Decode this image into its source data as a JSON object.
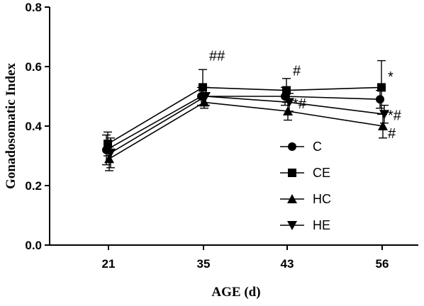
{
  "chart_data": {
    "type": "line",
    "xlabel": "AGE (d)",
    "ylabel": "Gonadosomatic Index",
    "categories": [
      "21",
      "35",
      "43",
      "56"
    ],
    "ylim": [
      0,
      0.8
    ],
    "yticks": [
      "0.0",
      "0.2",
      "0.4",
      "0.6",
      "0.8"
    ],
    "grid": false,
    "legend_position": "center-right",
    "series": [
      {
        "name": "C",
        "marker": "circle",
        "values": [
          0.32,
          0.5,
          0.5,
          0.49
        ],
        "errors": [
          0.05,
          0.03,
          0.03,
          0.03
        ]
      },
      {
        "name": "CE",
        "marker": "square",
        "values": [
          0.34,
          0.53,
          0.52,
          0.53
        ],
        "errors": [
          0.04,
          0.06,
          0.04,
          0.09
        ]
      },
      {
        "name": "HC",
        "marker": "triangle-up",
        "values": [
          0.29,
          0.48,
          0.45,
          0.4
        ],
        "errors": [
          0.04,
          0.02,
          0.03,
          0.04
        ]
      },
      {
        "name": "HE",
        "marker": "triangle-down",
        "values": [
          0.31,
          0.5,
          0.48,
          0.44
        ],
        "errors": [
          0.05,
          0.03,
          0.03,
          0.03
        ]
      }
    ],
    "annotations": [
      {
        "text": "##",
        "category": "35",
        "y": 0.62
      },
      {
        "text": "#",
        "category": "43",
        "y": 0.57
      },
      {
        "text": "*#",
        "category": "43",
        "y": 0.46
      },
      {
        "text": "*",
        "category": "56",
        "y": 0.55
      },
      {
        "text": "*#",
        "category": "56",
        "y": 0.42
      },
      {
        "text": "#",
        "category": "56",
        "y": 0.36
      }
    ]
  }
}
